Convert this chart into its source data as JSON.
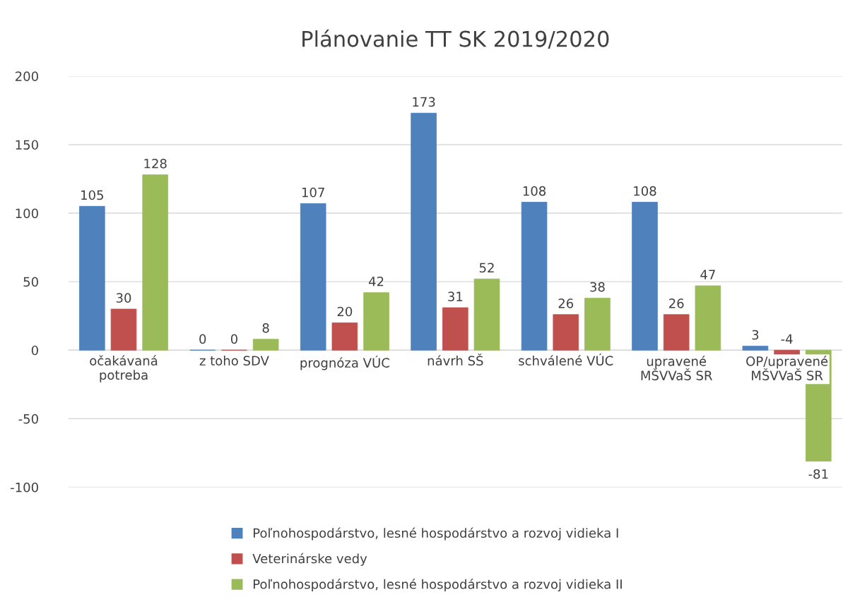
{
  "chart_data": {
    "type": "bar",
    "title": "Plánovanie TT SK 2019/2020",
    "categories": [
      "očakávaná\npotreba",
      "z toho SDV",
      "prognóza VÚC",
      "návrh SŠ",
      "schválené VÚC",
      "upravené\nMŠVVaŠ SR",
      "OP/upravené\nMŠVVaŠ SR"
    ],
    "series": [
      {
        "name": "Poľnohospodárstvo, lesné hospodárstvo a rozvoj vidieka I",
        "color": "#4f81bd",
        "values": [
          105,
          0,
          107,
          173,
          108,
          108,
          3
        ]
      },
      {
        "name": "Veterinárske vedy",
        "color": "#c0504d",
        "values": [
          30,
          0,
          20,
          31,
          26,
          26,
          -4
        ]
      },
      {
        "name": "Poľnohospodárstvo, lesné hospodárstvo a rozvoj vidieka II",
        "color": "#9bbb59",
        "values": [
          128,
          8,
          42,
          52,
          38,
          47,
          -81
        ]
      }
    ],
    "ylim": [
      -100,
      200
    ],
    "yticks": [
      -100,
      -50,
      0,
      50,
      100,
      150,
      200
    ],
    "grid": "y",
    "legend": "bottom",
    "data_labels": true
  }
}
